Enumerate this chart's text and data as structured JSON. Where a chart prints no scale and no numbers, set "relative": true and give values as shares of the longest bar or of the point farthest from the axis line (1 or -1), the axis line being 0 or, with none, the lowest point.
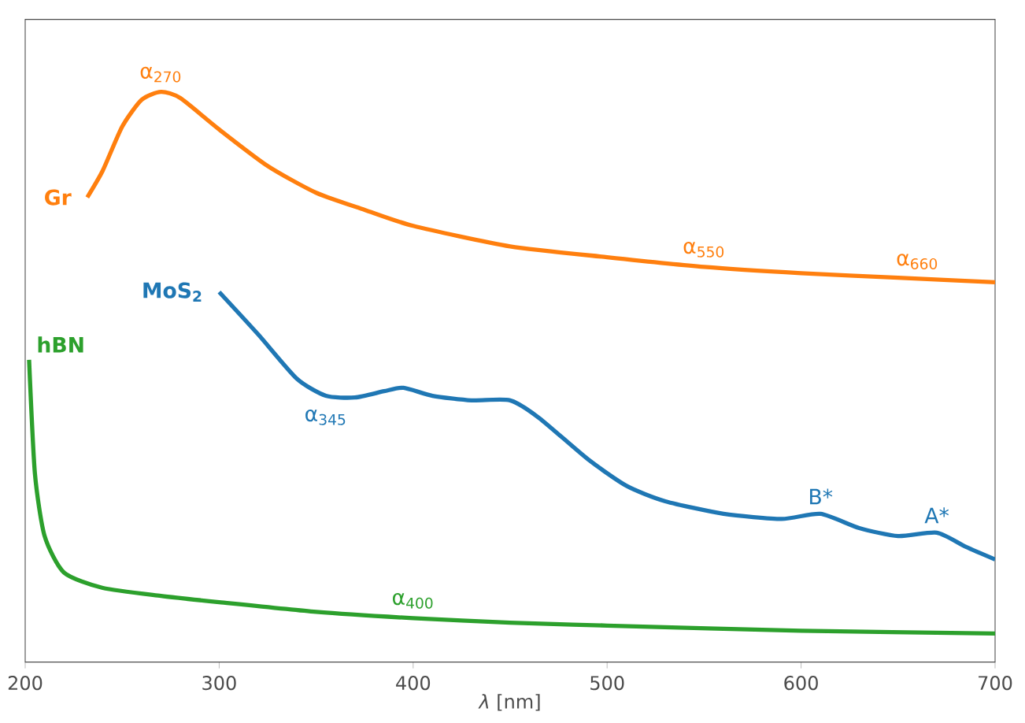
{
  "chart_data": {
    "type": "line",
    "relative": true,
    "xlabel": "*λ* [nm]",
    "xlim": [
      200,
      700
    ],
    "xticks": [
      200,
      300,
      400,
      500,
      600,
      700
    ],
    "series": [
      {
        "name": "Gr",
        "color": "#ff7f0e",
        "x": [
          232,
          240,
          250,
          260,
          270,
          280,
          300,
          325,
          350,
          375,
          400,
          450,
          500,
          550,
          600,
          650,
          700
        ],
        "values": [
          0.815,
          0.862,
          0.939,
          0.986,
          1.0,
          0.989,
          0.934,
          0.87,
          0.823,
          0.793,
          0.765,
          0.729,
          0.71,
          0.693,
          0.682,
          0.674,
          0.666
        ]
      },
      {
        "name": "MoS$_{2}$",
        "color": "#1f77b4",
        "x": [
          300,
          320,
          340,
          355,
          370,
          385,
          395,
          410,
          430,
          450,
          465,
          490,
          510,
          530,
          560,
          590,
          610,
          630,
          650,
          670,
          685,
          700
        ],
        "values": [
          0.649,
          0.575,
          0.497,
          0.467,
          0.464,
          0.475,
          0.481,
          0.467,
          0.459,
          0.459,
          0.428,
          0.356,
          0.309,
          0.282,
          0.26,
          0.251,
          0.26,
          0.235,
          0.221,
          0.227,
          0.202,
          0.18
        ]
      },
      {
        "name": "hBN",
        "color": "#2ca02c",
        "x": [
          202,
          205,
          210,
          220,
          240,
          270,
          300,
          350,
          400,
          450,
          500,
          600,
          700
        ],
        "values": [
          0.53,
          0.331,
          0.221,
          0.157,
          0.13,
          0.116,
          0.105,
          0.088,
          0.077,
          0.069,
          0.064,
          0.055,
          0.05
        ]
      }
    ],
    "annotations": [
      {
        "text": "α$_{270}$",
        "x": 270,
        "y": 1.0
      },
      {
        "text": "α$_{550}$",
        "x": 550,
        "y": 0.693
      },
      {
        "text": "α$_{660}$",
        "x": 660,
        "y": 0.672
      },
      {
        "text": "α$_{345}$",
        "x": 355,
        "y": 0.467
      },
      {
        "text": "B*",
        "x": 610,
        "y": 0.26
      },
      {
        "text": "A*",
        "x": 670,
        "y": 0.227
      },
      {
        "text": "α$_{400}$",
        "x": 400,
        "y": 0.077
      }
    ]
  }
}
